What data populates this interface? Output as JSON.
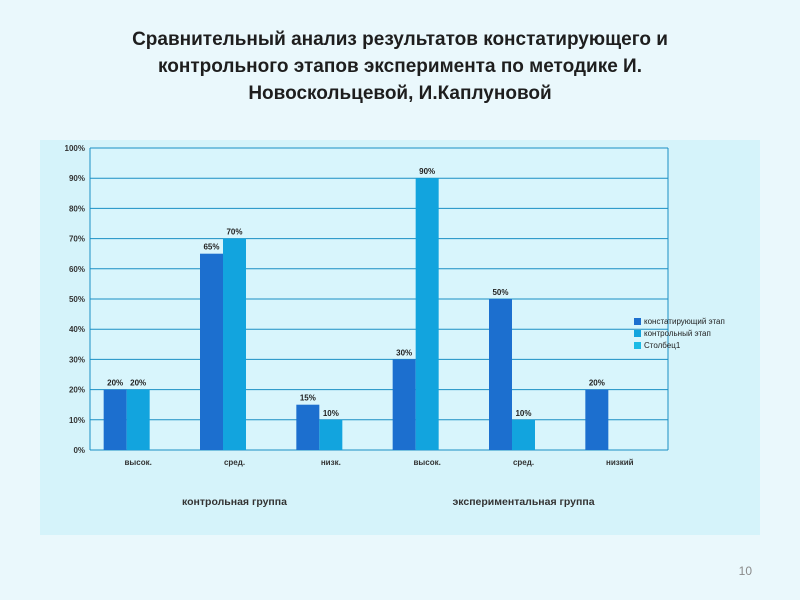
{
  "title_lines": [
    "Сравнительный анализ результатов констатирующего и",
    "контрольного этапов эксперимента по методике И.",
    "Новоскольцевой, И.Каплуновой"
  ],
  "page_number": "10",
  "colors": {
    "background": "#eaf8fc",
    "panel": "#d5f3fa",
    "plot_bg": "#d8f5fc",
    "grid": "#1a8fc4",
    "series_1": "#1c6fcf",
    "series_2": "#12a4de",
    "series_3": "#1bbbe6"
  },
  "chart_data": {
    "type": "bar",
    "title": "",
    "ylim": [
      0,
      100
    ],
    "yticks": [
      0,
      10,
      20,
      30,
      40,
      50,
      60,
      70,
      80,
      90,
      100
    ],
    "ytick_labels": [
      "0%",
      "10%",
      "20%",
      "30%",
      "40%",
      "50%",
      "60%",
      "70%",
      "80%",
      "90%",
      "100%"
    ],
    "grid": true,
    "legend_position": "right",
    "categories": [
      "высок.",
      "сред.",
      "низк.",
      "высок.",
      "сред.",
      "низкий"
    ],
    "group_labels": [
      {
        "label": "контрольная группа",
        "categories": [
          0,
          1,
          2
        ]
      },
      {
        "label": "экспериментальная группа",
        "categories": [
          3,
          4,
          5
        ]
      }
    ],
    "series": [
      {
        "name": "констатирующий этап",
        "values": [
          20,
          65,
          15,
          30,
          50,
          20
        ],
        "labels": [
          "20%",
          "65%",
          "15%",
          "30%",
          "50%",
          "20%"
        ]
      },
      {
        "name": "контрольный этап",
        "values": [
          20,
          70,
          10,
          90,
          10,
          null
        ],
        "labels": [
          "20%",
          "70%",
          "10%",
          "90%",
          "10%",
          ""
        ]
      },
      {
        "name": "Столбец1",
        "values": [
          null,
          null,
          null,
          null,
          null,
          null
        ],
        "labels": [
          "",
          "",
          "",
          "",
          "",
          ""
        ]
      }
    ]
  }
}
